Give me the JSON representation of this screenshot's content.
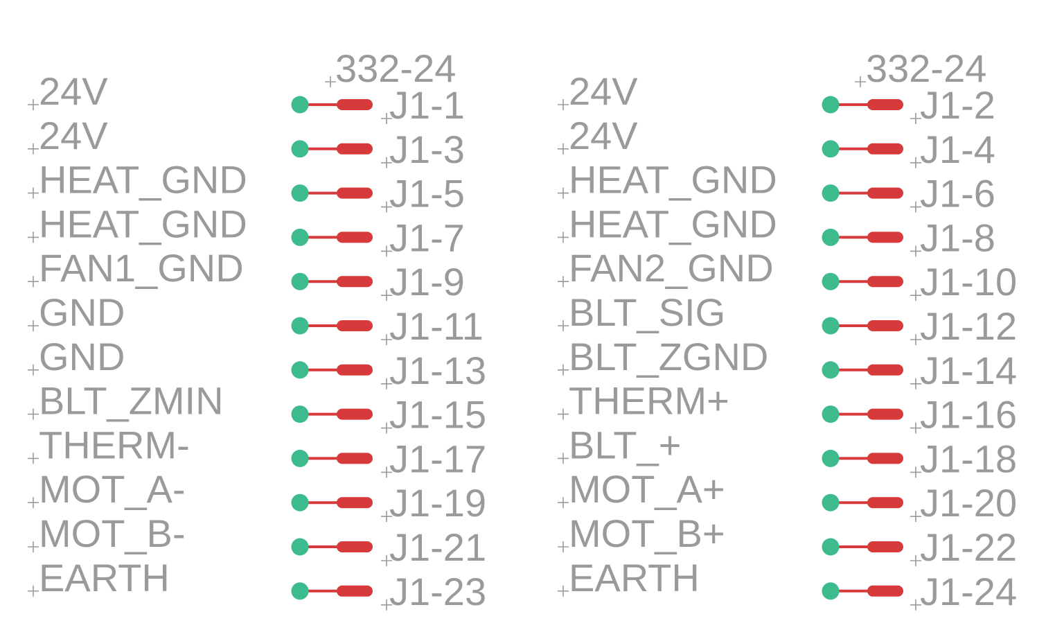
{
  "colors": {
    "label": "#9a9a9a",
    "pin_end": "#3dbb8c",
    "pin_line": "#d63a3a",
    "background": "#ffffff"
  },
  "connectors": [
    {
      "part": "332-24",
      "pins": [
        {
          "signal": "24V",
          "pin": "J1-1"
        },
        {
          "signal": "24V",
          "pin": "J1-3"
        },
        {
          "signal": "HEAT_GND",
          "pin": "J1-5"
        },
        {
          "signal": "HEAT_GND",
          "pin": "J1-7"
        },
        {
          "signal": "FAN1_GND",
          "pin": "J1-9"
        },
        {
          "signal": "GND",
          "pin": "J1-11"
        },
        {
          "signal": "GND",
          "pin": "J1-13"
        },
        {
          "signal": "BLT_ZMIN",
          "pin": "J1-15"
        },
        {
          "signal": "THERM-",
          "pin": "J1-17"
        },
        {
          "signal": "MOT_A-",
          "pin": "J1-19"
        },
        {
          "signal": "MOT_B-",
          "pin": "J1-21"
        },
        {
          "signal": "EARTH",
          "pin": "J1-23"
        }
      ]
    },
    {
      "part": "332-24",
      "pins": [
        {
          "signal": "24V",
          "pin": "J1-2"
        },
        {
          "signal": "24V",
          "pin": "J1-4"
        },
        {
          "signal": "HEAT_GND",
          "pin": "J1-6"
        },
        {
          "signal": "HEAT_GND",
          "pin": "J1-8"
        },
        {
          "signal": "FAN2_GND",
          "pin": "J1-10"
        },
        {
          "signal": "BLT_SIG",
          "pin": "J1-12"
        },
        {
          "signal": "BLT_ZGND",
          "pin": "J1-14"
        },
        {
          "signal": "THERM+",
          "pin": "J1-16"
        },
        {
          "signal": "BLT_+",
          "pin": "J1-18"
        },
        {
          "signal": "MOT_A+",
          "pin": "J1-20"
        },
        {
          "signal": "MOT_B+",
          "pin": "J1-22"
        },
        {
          "signal": "EARTH",
          "pin": "J1-24"
        }
      ]
    }
  ]
}
